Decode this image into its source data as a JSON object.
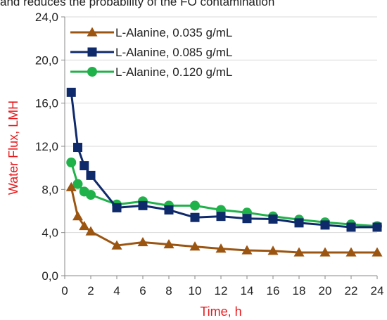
{
  "header_fragment": "and reduces the probability of the FO contamination",
  "chart_data": {
    "type": "line",
    "title": "",
    "xlabel": "Time, h",
    "ylabel": "Water Flux, LMH",
    "xlim": [
      0,
      24
    ],
    "ylim": [
      0,
      24
    ],
    "x_ticks": [
      "0",
      "2",
      "4",
      "6",
      "8",
      "10",
      "12",
      "14",
      "16",
      "18",
      "20",
      "22",
      "24"
    ],
    "y_ticks": [
      "0,0",
      "4,0",
      "8,0",
      "12,0",
      "16,0",
      "20,0",
      "24,0"
    ],
    "grid": "horizontal",
    "legend_position": "top-left",
    "series": [
      {
        "name": "L-Alanine, 0.035 g/mL",
        "color": "#9c5511",
        "marker": "triangle",
        "x": [
          0.5,
          1,
          1.5,
          2,
          4,
          6,
          8,
          10,
          12,
          14,
          16,
          18,
          20,
          22,
          24
        ],
        "y": [
          8.2,
          5.5,
          4.6,
          4.1,
          2.8,
          3.1,
          2.9,
          2.7,
          2.5,
          2.35,
          2.3,
          2.15,
          2.15,
          2.15,
          2.15
        ]
      },
      {
        "name": "L-Alanine, 0.085 g/mL",
        "color": "#0f2a6b",
        "marker": "square",
        "x": [
          0.5,
          1,
          1.5,
          2,
          4,
          6,
          8,
          10,
          12,
          14,
          16,
          18,
          20,
          22,
          24
        ],
        "y": [
          17.0,
          11.9,
          10.2,
          9.3,
          6.3,
          6.5,
          6.1,
          5.4,
          5.5,
          5.3,
          5.25,
          4.9,
          4.7,
          4.5,
          4.5
        ]
      },
      {
        "name": "L-Alanine, 0.120 g/mL",
        "color": "#20b24a",
        "marker": "circle",
        "x": [
          0.5,
          1,
          1.5,
          2,
          4,
          6,
          8,
          10,
          12,
          14,
          16,
          18,
          20,
          22,
          24
        ],
        "y": [
          10.5,
          8.5,
          7.8,
          7.5,
          6.6,
          6.9,
          6.5,
          6.5,
          6.1,
          5.85,
          5.5,
          5.2,
          4.95,
          4.75,
          4.6
        ]
      }
    ]
  }
}
